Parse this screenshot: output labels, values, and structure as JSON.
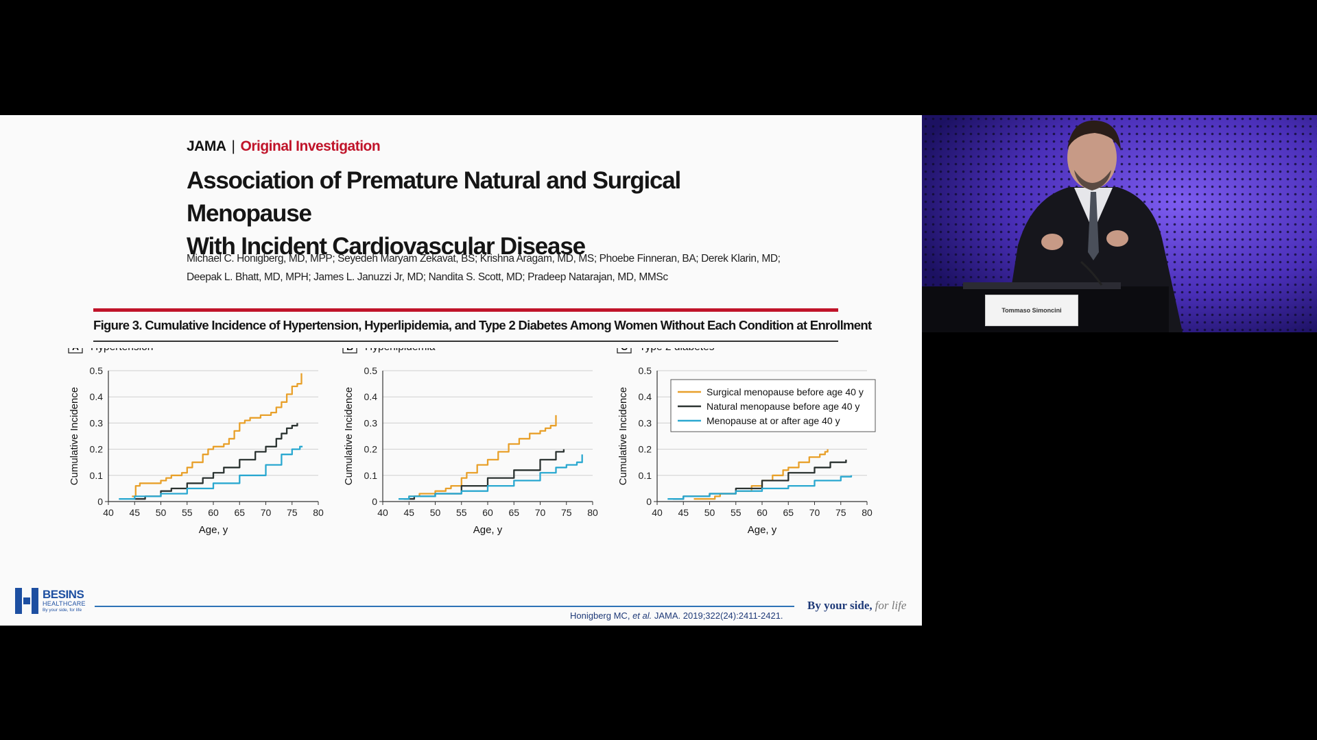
{
  "slide": {
    "journal": "JAMA",
    "separator": "|",
    "section": "Original Investigation",
    "title_line1": "Association of Premature Natural and Surgical Menopause",
    "title_line2": "With Incident Cardiovascular Disease",
    "authors_line1": "Michael C. Honigberg, MD, MPP; Seyedeh Maryam Zekavat, BS; Krishna Aragam, MD, MS; Phoebe Finneran, BA; Derek Klarin, MD;",
    "authors_line2": "Deepak L. Bhatt, MD, MPH; James L. Januzzi Jr, MD; Nandita S. Scott, MD; Pradeep Natarajan, MD, MMSc",
    "figure_caption": "Figure 3. Cumulative Incidence of Hypertension, Hyperlipidemia, and Type 2 Diabetes Among Women Without Each Condition at Enrollment",
    "logo_name": "BESINS",
    "logo_sub": "HEALTHCARE",
    "logo_tag": "By your side, for life",
    "citation_authors": "Honigberg MC,",
    "citation_etal": "et al.",
    "citation_ref": "JAMA. 2019;322(24):2411-2421.",
    "tagline_main": "By your side,",
    "tagline_script": "for life"
  },
  "video": {
    "nameplate": "Tommaso Simoncini"
  },
  "colors": {
    "surgical": "#e8a02a",
    "natural": "#2b3331",
    "after40": "#2aa8d0",
    "accent_red": "#c0142a",
    "footer_blue": "#2d72b6"
  },
  "chart_data": [
    {
      "type": "line",
      "panel": "A",
      "title": "Hypertension",
      "xlabel": "Age, y",
      "ylabel": "Cumulative Incidence",
      "xlim": [
        40,
        80
      ],
      "ylim": [
        0,
        0.5
      ],
      "xticks": [
        40,
        45,
        50,
        55,
        60,
        65,
        70,
        75,
        80
      ],
      "yticks": [
        0,
        0.1,
        0.2,
        0.3,
        0.4,
        0.5
      ],
      "grid": "horizontal",
      "series": [
        {
          "name": "Surgical menopause before age 40 y",
          "x": [
            44.5,
            45,
            45.2,
            46,
            48,
            50,
            51,
            52,
            54,
            55,
            56,
            58,
            59,
            60,
            61,
            62,
            63,
            64,
            65,
            66,
            67,
            68,
            69,
            70,
            71,
            72,
            73,
            74,
            75,
            76,
            76.5,
            76.8
          ],
          "y": [
            0.02,
            0.02,
            0.06,
            0.07,
            0.07,
            0.08,
            0.09,
            0.1,
            0.11,
            0.13,
            0.15,
            0.18,
            0.2,
            0.21,
            0.21,
            0.22,
            0.24,
            0.27,
            0.3,
            0.31,
            0.32,
            0.32,
            0.33,
            0.33,
            0.34,
            0.36,
            0.38,
            0.41,
            0.44,
            0.45,
            0.45,
            0.49
          ]
        },
        {
          "name": "Natural menopause before age 40 y",
          "x": [
            45,
            47,
            50,
            52,
            55,
            58,
            60,
            62,
            65,
            68,
            70,
            72,
            73,
            74,
            75,
            76
          ],
          "y": [
            0.01,
            0.02,
            0.04,
            0.05,
            0.07,
            0.09,
            0.11,
            0.13,
            0.16,
            0.19,
            0.21,
            0.24,
            0.26,
            0.28,
            0.29,
            0.3
          ]
        },
        {
          "name": "Menopause at or after age 40 y",
          "x": [
            42,
            45,
            50,
            55,
            60,
            65,
            70,
            73,
            75,
            76.5,
            77
          ],
          "y": [
            0.01,
            0.02,
            0.03,
            0.05,
            0.07,
            0.1,
            0.14,
            0.18,
            0.2,
            0.21,
            0.21
          ]
        }
      ]
    },
    {
      "type": "line",
      "panel": "B",
      "title": "Hyperlipidemia",
      "xlabel": "Age, y",
      "ylabel": "Cumulative Incidence",
      "xlim": [
        40,
        80
      ],
      "ylim": [
        0,
        0.5
      ],
      "xticks": [
        40,
        45,
        50,
        55,
        60,
        65,
        70,
        75,
        80
      ],
      "yticks": [
        0,
        0.1,
        0.2,
        0.3,
        0.4,
        0.5
      ],
      "grid": "horizontal",
      "series": [
        {
          "name": "Surgical menopause before age 40 y",
          "x": [
            44,
            45,
            47,
            50,
            52,
            53,
            55,
            56,
            58,
            60,
            62,
            64,
            66,
            68,
            70,
            71,
            72,
            73
          ],
          "y": [
            0.01,
            0.02,
            0.03,
            0.04,
            0.05,
            0.06,
            0.09,
            0.11,
            0.14,
            0.16,
            0.19,
            0.22,
            0.24,
            0.26,
            0.27,
            0.28,
            0.29,
            0.33
          ]
        },
        {
          "name": "Natural menopause before age 40 y",
          "x": [
            44,
            46,
            50,
            55,
            60,
            65,
            70,
            73,
            74.5
          ],
          "y": [
            0.01,
            0.02,
            0.03,
            0.06,
            0.09,
            0.12,
            0.16,
            0.19,
            0.2
          ]
        },
        {
          "name": "Menopause at or after age 40 y",
          "x": [
            43,
            45,
            50,
            55,
            60,
            65,
            70,
            73,
            75,
            77,
            77.5,
            78
          ],
          "y": [
            0.01,
            0.02,
            0.03,
            0.04,
            0.06,
            0.08,
            0.11,
            0.13,
            0.14,
            0.15,
            0.15,
            0.18
          ]
        }
      ]
    },
    {
      "type": "line",
      "panel": "C",
      "title": "Type 2 diabetes",
      "xlabel": "Age, y",
      "ylabel": "Cumulative Incidence",
      "xlim": [
        40,
        80
      ],
      "ylim": [
        0,
        0.5
      ],
      "xticks": [
        40,
        45,
        50,
        55,
        60,
        65,
        70,
        75,
        80
      ],
      "yticks": [
        0,
        0.1,
        0.2,
        0.3,
        0.4,
        0.5
      ],
      "grid": "horizontal",
      "legend": "top-right",
      "series": [
        {
          "name": "Surgical menopause before age 40 y",
          "x": [
            47,
            48,
            50,
            51,
            52,
            55,
            58,
            60,
            62,
            64,
            65,
            67,
            69,
            71,
            72,
            72.5
          ],
          "y": [
            0.01,
            0.01,
            0.01,
            0.02,
            0.03,
            0.04,
            0.06,
            0.08,
            0.1,
            0.12,
            0.13,
            0.15,
            0.17,
            0.18,
            0.19,
            0.2
          ]
        },
        {
          "name": "Natural menopause before age 40 y",
          "x": [
            43,
            45,
            48,
            50,
            55,
            60,
            65,
            70,
            73,
            75,
            76
          ],
          "y": [
            0.01,
            0.02,
            0.02,
            0.03,
            0.05,
            0.08,
            0.11,
            0.13,
            0.15,
            0.15,
            0.16
          ]
        },
        {
          "name": "Menopause at or after age 40 y",
          "x": [
            42,
            45,
            50,
            55,
            60,
            65,
            70,
            75,
            77
          ],
          "y": [
            0.01,
            0.02,
            0.03,
            0.04,
            0.05,
            0.06,
            0.08,
            0.095,
            0.1
          ]
        }
      ]
    }
  ]
}
